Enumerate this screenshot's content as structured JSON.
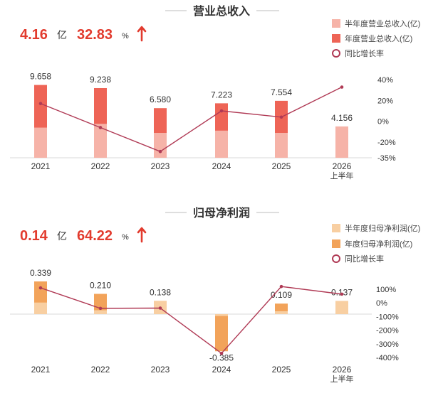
{
  "colors": {
    "headline_red": "#e23b2e",
    "line": "#b03a55",
    "rev_half": "#f6b3a8",
    "rev_full": "#ee6456",
    "np_half": "#f8cfa2",
    "np_full": "#f2a35a",
    "axis": "#d8d8d8"
  },
  "panels": [
    {
      "title": "营业总收入",
      "headline": {
        "value": "4.16",
        "unit": "亿",
        "pct": "32.83",
        "pct_unit": "%",
        "arrow": "up-arrow"
      },
      "legend": [
        "半年度营业总收入(亿)",
        "年度营业总收入(亿)",
        "同比增长率"
      ]
    },
    {
      "title": "归母净利润",
      "headline": {
        "value": "0.14",
        "unit": "亿",
        "pct": "64.22",
        "pct_unit": "%",
        "arrow": "up-arrow"
      },
      "legend": [
        "半年度归母净利润(亿)",
        "年度归母净利润(亿)",
        "同比增长率"
      ]
    }
  ],
  "chart_data": [
    {
      "type": "bar",
      "title": "营业总收入",
      "categories": [
        "2021",
        "2022",
        "2023",
        "2024",
        "2025",
        "2026\n上半年"
      ],
      "series": [
        {
          "name": "半年度营业总收入(亿)",
          "values": [
            4.0,
            4.5,
            3.3,
            3.6,
            3.3,
            4.156
          ]
        },
        {
          "name": "年度营业总收入(亿)",
          "values": [
            9.658,
            9.238,
            6.58,
            7.223,
            7.554,
            null
          ]
        },
        {
          "name": "同比增长率",
          "values": [
            17,
            -6,
            -29,
            10,
            4,
            32.83
          ],
          "axis": "right"
        }
      ],
      "data_labels": [
        "9.658",
        "9.238",
        "6.580",
        "7.223",
        "7.554",
        "4.156"
      ],
      "right_axis_ticks": [
        "40%",
        "20%",
        "0%",
        "-20%",
        "-35%"
      ],
      "right_ylim": [
        -35,
        40
      ],
      "left_ylim": [
        0,
        11.5
      ]
    },
    {
      "type": "bar",
      "title": "归母净利润",
      "categories": [
        "2021",
        "2022",
        "2023",
        "2024",
        "2025",
        "2026\n上半年"
      ],
      "series": [
        {
          "name": "半年度归母净利润(亿)",
          "values": [
            0.12,
            0.04,
            0.138,
            -0.02,
            0.03,
            0.137
          ]
        },
        {
          "name": "年度归母净利润(亿)",
          "values": [
            0.339,
            0.21,
            null,
            -0.385,
            0.109,
            null
          ]
        },
        {
          "name": "同比增长率",
          "values": [
            110,
            -40,
            -38,
            -370,
            120,
            64.22
          ],
          "axis": "right"
        }
      ],
      "data_labels": [
        "0.339",
        "0.210",
        "0.138",
        "-0.385",
        "0.109",
        "0.137"
      ],
      "right_axis_ticks": [
        "100%",
        "0%",
        "-100%",
        "-200%",
        "-300%",
        "-400%"
      ],
      "right_ylim": [
        -400,
        100
      ],
      "left_ylim": [
        -0.46,
        0.42
      ]
    }
  ]
}
